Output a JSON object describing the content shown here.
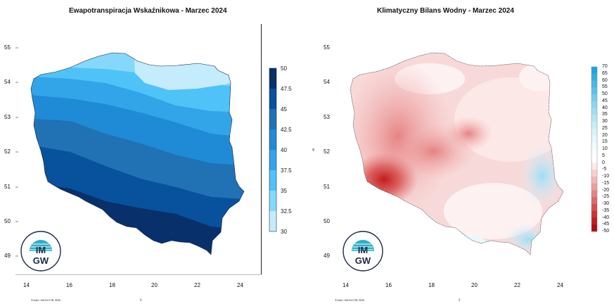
{
  "maps": [
    {
      "title": "Ewapotranspiracja Wskaźnikowa - Marzec 2024",
      "lon_ticks": [
        "14",
        "16",
        "18",
        "20",
        "22",
        "24"
      ],
      "lat_ticks": [
        "55",
        "54",
        "53",
        "52",
        "51",
        "50",
        "49"
      ],
      "legend": {
        "labels": [
          "50",
          "47.5",
          "45",
          "42.5",
          "40",
          "37.5",
          "35",
          "32.5",
          "30"
        ],
        "colors": [
          "#08306b",
          "#08519c",
          "#2171b5",
          "#1f8ad6",
          "#31a5e8",
          "#4fc3f7",
          "#86d8fa",
          "#c4ecfc"
        ],
        "range": [
          30,
          50
        ]
      },
      "source": "Źródło: IMGW-PIB ZBIK",
      "x_axis_name": "λ"
    },
    {
      "title": "Klimatyczny Bilans Wodny - Marzec 2024",
      "lon_ticks": [
        "14",
        "16",
        "18",
        "20",
        "22",
        "24"
      ],
      "lat_ticks": [
        "55",
        "54",
        "53",
        "52",
        "51",
        "50",
        "49"
      ],
      "legend": {
        "labels": [
          "70",
          "65",
          "60",
          "55",
          "50",
          "45",
          "40",
          "35",
          "30",
          "25",
          "20",
          "15",
          "10",
          "5",
          "0",
          "-5",
          "-10",
          "-15",
          "-20",
          "-25",
          "-30",
          "-35",
          "-40",
          "-45",
          "-50"
        ],
        "colors_positive": [
          "#1ea3e3",
          "#30aee6",
          "#45b9ea",
          "#5bc3ee",
          "#72cdf1",
          "#88d6f3",
          "#9edef6",
          "#b2e6f8",
          "#c6edfa",
          "#d8f3fb",
          "#e6f7fd",
          "#f1fbfe",
          "#fafdff",
          "#ffffff"
        ],
        "colors_negative": [
          "#fde8e8",
          "#f8cfcf",
          "#f3b6b6",
          "#ed9c9c",
          "#e68282",
          "#de6767",
          "#d64d4d",
          "#cc3434",
          "#c21d1d",
          "#b80b0b"
        ],
        "range": [
          -50,
          70
        ]
      },
      "source": "Źródło: IMGW-PIB ZBIK",
      "x_axis_name": "λ",
      "y_axis_name": "φ"
    }
  ],
  "logo_text": {
    "top": "IM",
    "bottom": "GW"
  }
}
